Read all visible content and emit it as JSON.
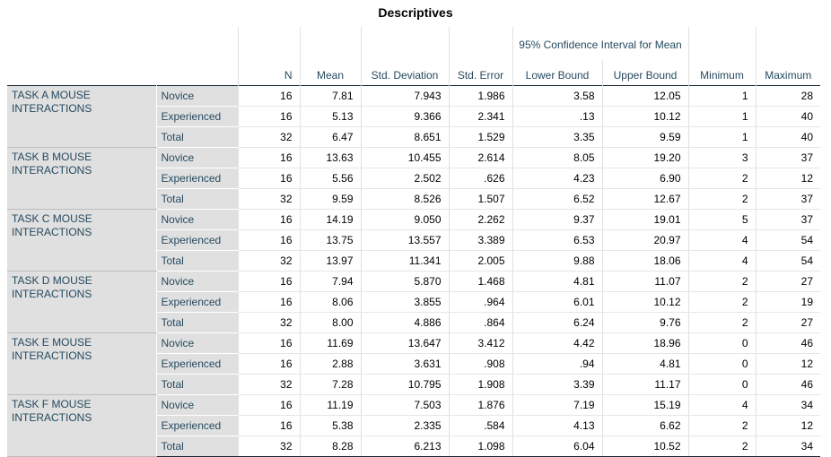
{
  "title": "Descriptives",
  "headers": {
    "n": "N",
    "mean": "Mean",
    "std_dev": "Std. Deviation",
    "std_err": "Std. Error",
    "ci_group": "95% Confidence Interval for Mean",
    "lower": "Lower Bound",
    "upper": "Upper Bound",
    "min": "Minimum",
    "max": "Maximum"
  },
  "groups": [
    {
      "label": "TASK A MOUSE INTERACTIONS",
      "rows": [
        {
          "sub": "Novice",
          "n": "16",
          "mean": "7.81",
          "sd": "7.943",
          "se": "1.986",
          "lb": "3.58",
          "ub": "12.05",
          "min": "1",
          "max": "28"
        },
        {
          "sub": "Experienced",
          "n": "16",
          "mean": "5.13",
          "sd": "9.366",
          "se": "2.341",
          "lb": ".13",
          "ub": "10.12",
          "min": "1",
          "max": "40"
        },
        {
          "sub": "Total",
          "n": "32",
          "mean": "6.47",
          "sd": "8.651",
          "se": "1.529",
          "lb": "3.35",
          "ub": "9.59",
          "min": "1",
          "max": "40"
        }
      ]
    },
    {
      "label": "TASK B MOUSE INTERACTIONS",
      "rows": [
        {
          "sub": "Novice",
          "n": "16",
          "mean": "13.63",
          "sd": "10.455",
          "se": "2.614",
          "lb": "8.05",
          "ub": "19.20",
          "min": "3",
          "max": "37"
        },
        {
          "sub": "Experienced",
          "n": "16",
          "mean": "5.56",
          "sd": "2.502",
          "se": ".626",
          "lb": "4.23",
          "ub": "6.90",
          "min": "2",
          "max": "12"
        },
        {
          "sub": "Total",
          "n": "32",
          "mean": "9.59",
          "sd": "8.526",
          "se": "1.507",
          "lb": "6.52",
          "ub": "12.67",
          "min": "2",
          "max": "37"
        }
      ]
    },
    {
      "label": "TASK C MOUSE INTERACTIONS",
      "rows": [
        {
          "sub": "Novice",
          "n": "16",
          "mean": "14.19",
          "sd": "9.050",
          "se": "2.262",
          "lb": "9.37",
          "ub": "19.01",
          "min": "5",
          "max": "37"
        },
        {
          "sub": "Experienced",
          "n": "16",
          "mean": "13.75",
          "sd": "13.557",
          "se": "3.389",
          "lb": "6.53",
          "ub": "20.97",
          "min": "4",
          "max": "54"
        },
        {
          "sub": "Total",
          "n": "32",
          "mean": "13.97",
          "sd": "11.341",
          "se": "2.005",
          "lb": "9.88",
          "ub": "18.06",
          "min": "4",
          "max": "54"
        }
      ]
    },
    {
      "label": "TASK D MOUSE INTERACTIONS",
      "rows": [
        {
          "sub": "Novice",
          "n": "16",
          "mean": "7.94",
          "sd": "5.870",
          "se": "1.468",
          "lb": "4.81",
          "ub": "11.07",
          "min": "2",
          "max": "27"
        },
        {
          "sub": "Experienced",
          "n": "16",
          "mean": "8.06",
          "sd": "3.855",
          "se": ".964",
          "lb": "6.01",
          "ub": "10.12",
          "min": "2",
          "max": "19"
        },
        {
          "sub": "Total",
          "n": "32",
          "mean": "8.00",
          "sd": "4.886",
          "se": ".864",
          "lb": "6.24",
          "ub": "9.76",
          "min": "2",
          "max": "27"
        }
      ]
    },
    {
      "label": "TASK E MOUSE INTERACTIONS",
      "rows": [
        {
          "sub": "Novice",
          "n": "16",
          "mean": "11.69",
          "sd": "13.647",
          "se": "3.412",
          "lb": "4.42",
          "ub": "18.96",
          "min": "0",
          "max": "46"
        },
        {
          "sub": "Experienced",
          "n": "16",
          "mean": "2.88",
          "sd": "3.631",
          "se": ".908",
          "lb": ".94",
          "ub": "4.81",
          "min": "0",
          "max": "12"
        },
        {
          "sub": "Total",
          "n": "32",
          "mean": "7.28",
          "sd": "10.795",
          "se": "1.908",
          "lb": "3.39",
          "ub": "11.17",
          "min": "0",
          "max": "46"
        }
      ]
    },
    {
      "label": "TASK F MOUSE INTERACTIONS",
      "rows": [
        {
          "sub": "Novice",
          "n": "16",
          "mean": "11.19",
          "sd": "7.503",
          "se": "1.876",
          "lb": "7.19",
          "ub": "15.19",
          "min": "4",
          "max": "34"
        },
        {
          "sub": "Experienced",
          "n": "16",
          "mean": "5.38",
          "sd": "2.335",
          "se": ".584",
          "lb": "4.13",
          "ub": "6.62",
          "min": "2",
          "max": "12"
        },
        {
          "sub": "Total",
          "n": "32",
          "mean": "8.28",
          "sd": "6.213",
          "se": "1.098",
          "lb": "6.04",
          "ub": "10.52",
          "min": "2",
          "max": "34"
        }
      ]
    }
  ]
}
